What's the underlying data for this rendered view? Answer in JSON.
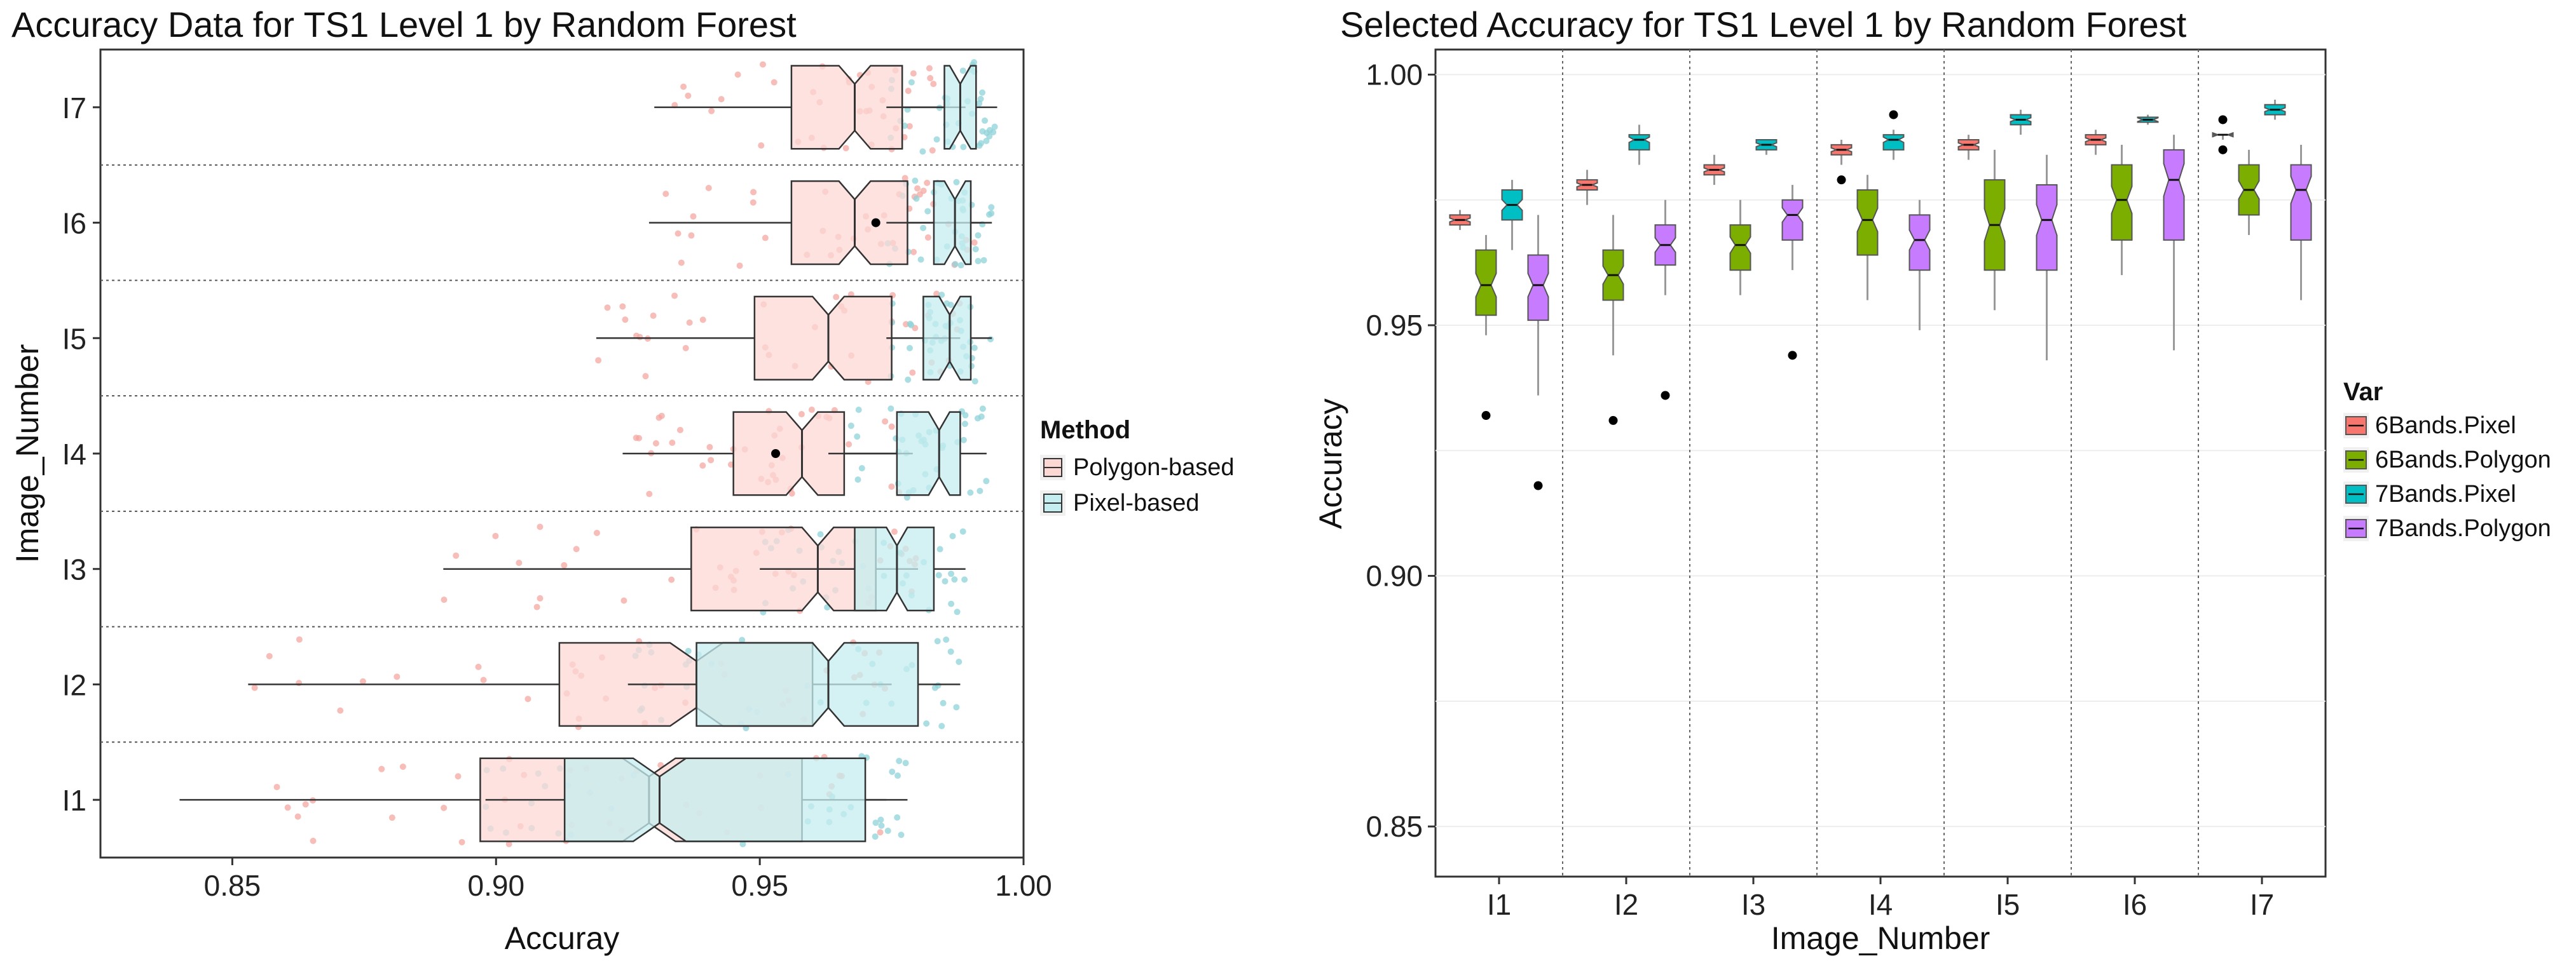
{
  "chart_data": [
    {
      "type": "boxplot",
      "orientation": "horizontal",
      "title": "Accuracy Data for TS1 Level 1 by Random Forest",
      "xlabel": "Accuray",
      "ylabel": "Image_Number",
      "xlim": [
        0.825,
        1.0
      ],
      "xticks": [
        0.85,
        0.9,
        0.95,
        1.0
      ],
      "xtick_labels": [
        "0.85",
        "0.90",
        "0.95",
        "1.00"
      ],
      "categories": [
        "I1",
        "I2",
        "I3",
        "I4",
        "I5",
        "I6",
        "I7"
      ],
      "grid": true,
      "legend": {
        "title": "Method",
        "position": "right",
        "entries": [
          {
            "name": "Polygon-based",
            "color": "#f8766d",
            "fill": "#fcd8d5"
          },
          {
            "name": "Pixel-based",
            "color": "#00bfc4",
            "fill": "#c5eef0"
          }
        ]
      },
      "series": [
        {
          "name": "Polygon-based",
          "boxes": [
            {
              "category": "I1",
              "min": 0.84,
              "q1": 0.897,
              "median": 0.929,
              "q3": 0.958,
              "max": 0.974,
              "notch": [
                0.924,
                0.934
              ]
            },
            {
              "category": "I2",
              "min": 0.853,
              "q1": 0.912,
              "median": 0.938,
              "q3": 0.96,
              "max": 0.975,
              "notch": [
                0.933,
                0.943
              ]
            },
            {
              "category": "I3",
              "min": 0.89,
              "q1": 0.937,
              "median": 0.961,
              "q3": 0.972,
              "max": 0.98,
              "notch": [
                0.958,
                0.964
              ]
            },
            {
              "category": "I4",
              "min": 0.924,
              "q1": 0.945,
              "median": 0.958,
              "q3": 0.966,
              "max": 0.979,
              "notch": [
                0.955,
                0.961
              ]
            },
            {
              "category": "I5",
              "min": 0.919,
              "q1": 0.949,
              "median": 0.963,
              "q3": 0.975,
              "max": 0.988,
              "notch": [
                0.96,
                0.966
              ]
            },
            {
              "category": "I6",
              "min": 0.929,
              "q1": 0.956,
              "median": 0.968,
              "q3": 0.978,
              "max": 0.992,
              "notch": [
                0.965,
                0.971
              ]
            },
            {
              "category": "I7",
              "min": 0.93,
              "q1": 0.956,
              "median": 0.968,
              "q3": 0.977,
              "max": 0.989,
              "notch": [
                0.965,
                0.971
              ]
            }
          ],
          "outliers": [
            {
              "category": "I6",
              "value": 0.972
            }
          ]
        },
        {
          "name": "Pixel-based",
          "boxes": [
            {
              "category": "I1",
              "min": 0.898,
              "q1": 0.913,
              "median": 0.931,
              "q3": 0.97,
              "max": 0.978,
              "notch": [
                0.926,
                0.936
              ]
            },
            {
              "category": "I2",
              "min": 0.925,
              "q1": 0.938,
              "median": 0.963,
              "q3": 0.98,
              "max": 0.988,
              "notch": [
                0.96,
                0.966
              ]
            },
            {
              "category": "I3",
              "min": 0.95,
              "q1": 0.968,
              "median": 0.976,
              "q3": 0.983,
              "max": 0.989,
              "notch": [
                0.974,
                0.978
              ]
            },
            {
              "category": "I4",
              "min": 0.963,
              "q1": 0.976,
              "median": 0.984,
              "q3": 0.988,
              "max": 0.993,
              "notch": [
                0.982,
                0.986
              ]
            },
            {
              "category": "I5",
              "min": 0.974,
              "q1": 0.981,
              "median": 0.986,
              "q3": 0.99,
              "max": 0.994,
              "notch": [
                0.984,
                0.988
              ]
            },
            {
              "category": "I6",
              "min": 0.974,
              "q1": 0.983,
              "median": 0.987,
              "q3": 0.99,
              "max": 0.994,
              "notch": [
                0.985,
                0.989
              ]
            },
            {
              "category": "I7",
              "min": 0.974,
              "q1": 0.985,
              "median": 0.988,
              "q3": 0.991,
              "max": 0.995,
              "notch": [
                0.986,
                0.99
              ]
            }
          ],
          "outliers": [
            {
              "category": "I4",
              "value": 0.953
            }
          ]
        }
      ]
    },
    {
      "type": "boxplot",
      "orientation": "vertical",
      "title": "Selected Accuracy for TS1 Level 1 by Random Forest",
      "xlabel": "Image_Number",
      "ylabel": "Accuracy",
      "ylim": [
        0.84,
        1.005
      ],
      "yticks": [
        0.85,
        0.9,
        0.95,
        1.0
      ],
      "ytick_labels": [
        "0.85",
        "0.90",
        "0.95",
        "1.00"
      ],
      "categories": [
        "I1",
        "I2",
        "I3",
        "I4",
        "I5",
        "I6",
        "I7"
      ],
      "grid": true,
      "legend": {
        "title": "Var",
        "position": "right",
        "entries": [
          {
            "name": "6Bands.Pixel",
            "color": "#f8766d"
          },
          {
            "name": "6Bands.Polygon",
            "color": "#7cae00"
          },
          {
            "name": "7Bands.Pixel",
            "color": "#00bfc4"
          },
          {
            "name": "7Bands.Polygon",
            "color": "#c77cff"
          }
        ]
      },
      "series": [
        {
          "name": "6Bands.Pixel",
          "boxes": [
            {
              "category": "I1",
              "min": 0.969,
              "q1": 0.97,
              "median": 0.971,
              "q3": 0.972,
              "max": 0.973
            },
            {
              "category": "I2",
              "min": 0.974,
              "q1": 0.977,
              "median": 0.978,
              "q3": 0.979,
              "max": 0.981
            },
            {
              "category": "I3",
              "min": 0.978,
              "q1": 0.98,
              "median": 0.981,
              "q3": 0.982,
              "max": 0.984
            },
            {
              "category": "I4",
              "min": 0.982,
              "q1": 0.984,
              "median": 0.985,
              "q3": 0.986,
              "max": 0.987
            },
            {
              "category": "I5",
              "min": 0.983,
              "q1": 0.985,
              "median": 0.986,
              "q3": 0.987,
              "max": 0.988
            },
            {
              "category": "I6",
              "min": 0.984,
              "q1": 0.986,
              "median": 0.987,
              "q3": 0.988,
              "max": 0.989
            },
            {
              "category": "I7",
              "min": 0.987,
              "q1": 0.988,
              "median": 0.988,
              "q3": 0.988,
              "max": 0.988
            }
          ],
          "outliers": [
            {
              "category": "I4",
              "value": 0.979
            },
            {
              "category": "I7",
              "value": 0.991
            },
            {
              "category": "I7",
              "value": 0.985
            }
          ]
        },
        {
          "name": "6Bands.Polygon",
          "boxes": [
            {
              "category": "I1",
              "min": 0.948,
              "q1": 0.952,
              "median": 0.958,
              "q3": 0.965,
              "max": 0.968
            },
            {
              "category": "I2",
              "min": 0.944,
              "q1": 0.955,
              "median": 0.96,
              "q3": 0.965,
              "max": 0.972
            },
            {
              "category": "I3",
              "min": 0.956,
              "q1": 0.961,
              "median": 0.966,
              "q3": 0.97,
              "max": 0.975
            },
            {
              "category": "I4",
              "min": 0.955,
              "q1": 0.964,
              "median": 0.971,
              "q3": 0.977,
              "max": 0.98
            },
            {
              "category": "I5",
              "min": 0.953,
              "q1": 0.961,
              "median": 0.97,
              "q3": 0.979,
              "max": 0.985
            },
            {
              "category": "I6",
              "min": 0.96,
              "q1": 0.967,
              "median": 0.975,
              "q3": 0.982,
              "max": 0.986
            },
            {
              "category": "I7",
              "min": 0.968,
              "q1": 0.972,
              "median": 0.977,
              "q3": 0.982,
              "max": 0.985
            }
          ],
          "outliers": [
            {
              "category": "I1",
              "value": 0.932
            },
            {
              "category": "I2",
              "value": 0.931
            }
          ]
        },
        {
          "name": "7Bands.Pixel",
          "boxes": [
            {
              "category": "I1",
              "min": 0.965,
              "q1": 0.971,
              "median": 0.974,
              "q3": 0.977,
              "max": 0.979
            },
            {
              "category": "I2",
              "min": 0.982,
              "q1": 0.985,
              "median": 0.987,
              "q3": 0.988,
              "max": 0.99
            },
            {
              "category": "I3",
              "min": 0.984,
              "q1": 0.985,
              "median": 0.986,
              "q3": 0.987,
              "max": 0.987
            },
            {
              "category": "I4",
              "min": 0.983,
              "q1": 0.985,
              "median": 0.987,
              "q3": 0.988,
              "max": 0.989
            },
            {
              "category": "I5",
              "min": 0.988,
              "q1": 0.99,
              "median": 0.991,
              "q3": 0.992,
              "max": 0.993
            },
            {
              "category": "I6",
              "min": 0.99,
              "q1": 0.9905,
              "median": 0.991,
              "q3": 0.9915,
              "max": 0.992
            },
            {
              "category": "I7",
              "min": 0.991,
              "q1": 0.992,
              "median": 0.993,
              "q3": 0.994,
              "max": 0.995
            }
          ],
          "outliers": [
            {
              "category": "I4",
              "value": 0.992
            }
          ]
        },
        {
          "name": "7Bands.Polygon",
          "boxes": [
            {
              "category": "I1",
              "min": 0.936,
              "q1": 0.951,
              "median": 0.958,
              "q3": 0.964,
              "max": 0.972
            },
            {
              "category": "I2",
              "min": 0.956,
              "q1": 0.962,
              "median": 0.966,
              "q3": 0.97,
              "max": 0.975
            },
            {
              "category": "I3",
              "min": 0.961,
              "q1": 0.967,
              "median": 0.972,
              "q3": 0.975,
              "max": 0.978
            },
            {
              "category": "I4",
              "min": 0.949,
              "q1": 0.961,
              "median": 0.967,
              "q3": 0.972,
              "max": 0.975
            },
            {
              "category": "I5",
              "min": 0.943,
              "q1": 0.961,
              "median": 0.971,
              "q3": 0.978,
              "max": 0.984
            },
            {
              "category": "I6",
              "min": 0.945,
              "q1": 0.967,
              "median": 0.979,
              "q3": 0.985,
              "max": 0.988
            },
            {
              "category": "I7",
              "min": 0.955,
              "q1": 0.967,
              "median": 0.977,
              "q3": 0.982,
              "max": 0.986
            }
          ],
          "outliers": [
            {
              "category": "I1",
              "value": 0.918
            },
            {
              "category": "I2",
              "value": 0.936
            },
            {
              "category": "I3",
              "value": 0.944
            }
          ]
        }
      ]
    }
  ]
}
